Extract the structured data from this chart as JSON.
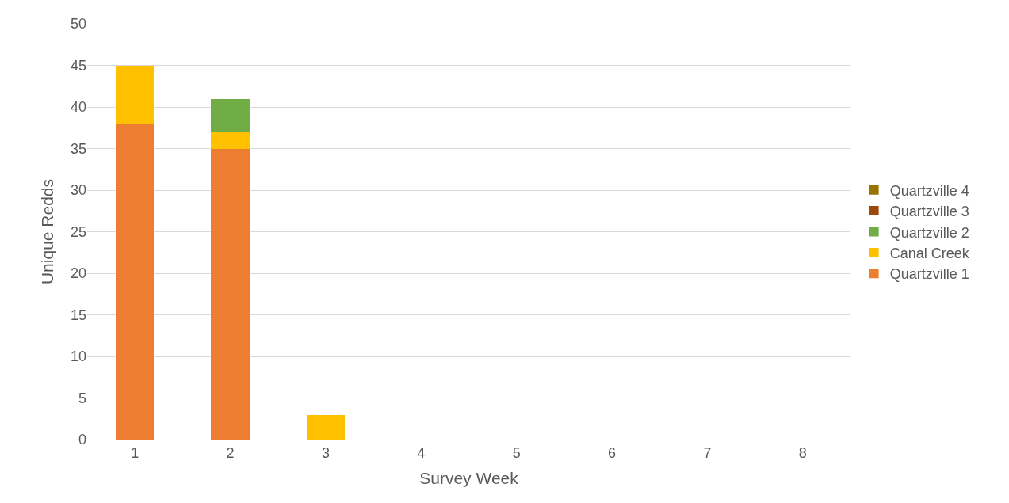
{
  "chart_data": {
    "type": "bar",
    "stacked": true,
    "xlabel": "Survey Week",
    "ylabel": "Unique Redds",
    "categories": [
      "1",
      "2",
      "3",
      "4",
      "5",
      "6",
      "7",
      "8"
    ],
    "series": [
      {
        "name": "Quartzville 1",
        "color": "#ed7d31",
        "values": [
          38,
          35,
          0,
          0,
          0,
          0,
          0,
          0
        ]
      },
      {
        "name": "Canal Creek",
        "color": "#ffc000",
        "values": [
          7,
          2,
          3,
          0,
          0,
          0,
          0,
          0
        ]
      },
      {
        "name": "Quartzville 2",
        "color": "#70ad47",
        "values": [
          0,
          4,
          0,
          0,
          0,
          0,
          0,
          0
        ]
      },
      {
        "name": "Quartzville 3",
        "color": "#9e480e",
        "values": [
          0,
          0,
          0,
          0,
          0,
          0,
          0,
          0
        ]
      },
      {
        "name": "Quartzville 4",
        "color": "#997300",
        "values": [
          0,
          0,
          0,
          0,
          0,
          0,
          0,
          0
        ]
      }
    ],
    "ylim": [
      0,
      50
    ],
    "yticks": [
      0,
      5,
      10,
      15,
      20,
      25,
      30,
      35,
      40,
      45,
      50
    ],
    "grid": "y",
    "legend": "right"
  }
}
